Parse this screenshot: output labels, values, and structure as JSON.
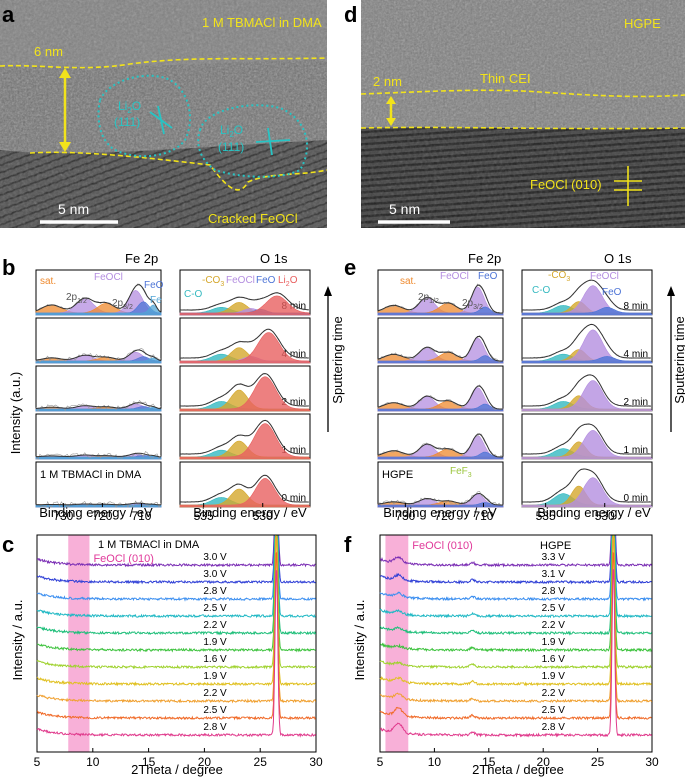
{
  "colors": {
    "ylw": "#f2e31b",
    "cyan": "#27c4c4",
    "li2o": "#e86060",
    "feocl": "#b48ee0",
    "feo": "#4d74d6",
    "co3": "#d4a72c",
    "co": "#35b9c0",
    "sat": "#ef8a2e",
    "fe": "#52a5d6",
    "fef3": "#9bc53d",
    "pink": "#f596cb"
  },
  "panel_a": {
    "letter": "a",
    "title": "1 M TBMACl in DMA",
    "thickness": "6 nm",
    "li2o_1": "Li",
    "li2o_1_sub": "2",
    "li2o_1_o": "O",
    "li2o_1_hkl": "(111)",
    "li2o_2": "Li",
    "li2o_2_sub": "2",
    "li2o_2_o": "O",
    "li2o_2_hkl": "(111)",
    "bottom_label": "Cracked FeOCl",
    "scale": "5 nm"
  },
  "panel_d": {
    "letter": "d",
    "title": "HGPE",
    "thickness": "2 nm",
    "cei_label": "Thin CEI",
    "plane_label": "FeOCl (010)",
    "scale": "5 nm"
  },
  "panel_b": {
    "letter": "b",
    "fe_title": "Fe 2p",
    "o_title": "O 1s",
    "ylabel": "Intensity (a.u.)",
    "side_label": "Sputtering time",
    "times": [
      "8 min",
      "4 min",
      "2 min",
      "1 min",
      "0 min"
    ],
    "fe_labels": {
      "sat": "sat.",
      "feocl": "FeOCl",
      "feo": "FeO",
      "fe": "Fe",
      "p12": "2p",
      "p12_sub": "1/2",
      "p32": "2p",
      "p32_sub": "3/2"
    },
    "o_labels": {
      "co3": "-CO",
      "co3_sub": "3",
      "feocl": "FeOCl",
      "feo": "FeO",
      "co": "C-O",
      "li2o": "Li",
      "li2o_sub": "2",
      "li2o_o": "O"
    },
    "sample": "1 M TBMACl in DMA",
    "fe_ticks": [
      "730",
      "720",
      "710"
    ],
    "o_ticks": [
      "535",
      "530"
    ],
    "xlabel": "Binding energy / eV"
  },
  "panel_e": {
    "letter": "e",
    "fe_title": "Fe 2p",
    "o_title": "O 1s",
    "ylabel": "Intensity (a.u.)",
    "side_label": "Sputtering time",
    "times": [
      "8 min",
      "4 min",
      "2 min",
      "1 min",
      "0 min"
    ],
    "fe_labels": {
      "sat": "sat.",
      "feocl": "FeOCl",
      "feo": "FeO",
      "p12": "2p",
      "p12_sub": "1/2",
      "p32": "2p",
      "p32_sub": "3/2",
      "fef3": "FeF",
      "fef3_sub": "3"
    },
    "o_labels": {
      "co3": "-CO",
      "co3_sub": "3",
      "feocl": "FeOCl",
      "feo": "FeO",
      "co": "C-O"
    },
    "sample": "HGPE",
    "fe_ticks": [
      "730",
      "720",
      "710"
    ],
    "o_ticks": [
      "535",
      "530"
    ],
    "xlabel": "Binding energy / eV"
  },
  "panel_c": {
    "letter": "c",
    "sample": "1 M TBMACl in DMA",
    "highlight": "FeOCl (010)",
    "voltages": [
      "3.0 V",
      "3.0 V",
      "2.8 V",
      "2.5 V",
      "2.2 V",
      "1.9 V",
      "1.6 V",
      "1.9 V",
      "2.2 V",
      "2.5 V",
      "2.8 V"
    ],
    "ylabel": "Intensity / a.u.",
    "xlabel": "2Theta / degree",
    "ticks": [
      "5",
      "10",
      "15",
      "20",
      "25",
      "30"
    ]
  },
  "panel_f": {
    "letter": "f",
    "sample": "HGPE",
    "highlight": "FeOCl (010)",
    "voltages": [
      "3.3 V",
      "3.1 V",
      "2.8 V",
      "2.5 V",
      "2.2 V",
      "1.9 V",
      "1.6 V",
      "1.9 V",
      "2.2 V",
      "2.5 V",
      "2.8 V"
    ],
    "ylabel": "Intensity / a.u.",
    "xlabel": "2Theta / degree",
    "ticks": [
      "5",
      "10",
      "15",
      "20",
      "25",
      "30"
    ]
  },
  "xrd_colors": [
    "#7a2db4",
    "#2f3fd6",
    "#3a8ef0",
    "#1fb8c4",
    "#1fbf7a",
    "#3cc23c",
    "#9fd22e",
    "#e0c020",
    "#f0a030",
    "#f06a28",
    "#e03a8c"
  ]
}
